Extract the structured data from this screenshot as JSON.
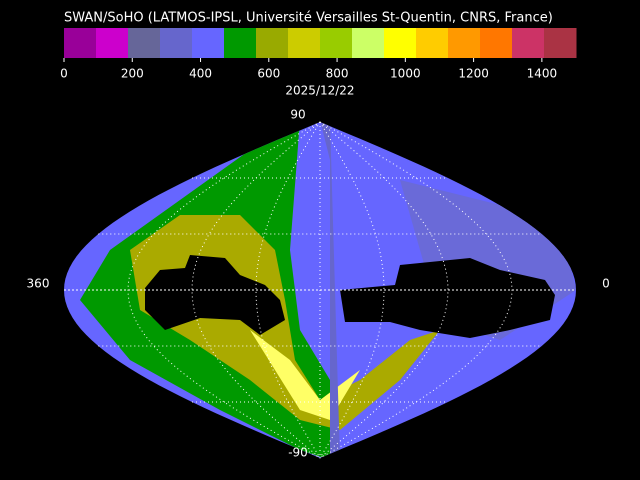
{
  "title": "SWAN/SoHO (LATMOS-IPSL, Université Versailles St-Quentin, CNRS, France)",
  "colorbar": {
    "colors": [
      "#990099",
      "#cc00cc",
      "#666699",
      "#6666cc",
      "#6666ff",
      "#009900",
      "#99aa00",
      "#cccc00",
      "#99cc00",
      "#ccff66",
      "#ffff00",
      "#ffcc00",
      "#ff9900",
      "#ff7700",
      "#cc3366",
      "#aa3344"
    ],
    "lim": [
      0,
      1500
    ],
    "ticks": [
      0,
      200,
      400,
      600,
      800,
      1000,
      1200,
      1400
    ]
  },
  "date": "2025/12/22",
  "map": {
    "north_label": "90",
    "south_label": "-90",
    "left_label": "360",
    "right_label": "0"
  }
}
